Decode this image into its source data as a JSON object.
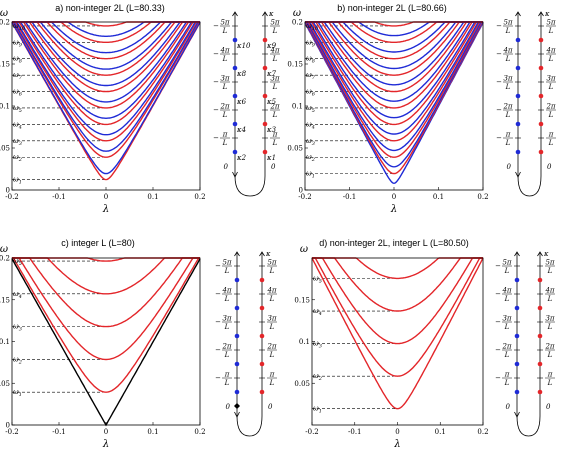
{
  "chart_data": [
    {
      "type": "line",
      "title": "a) non-integer 2L (L=80.33)",
      "xlabel": "λ",
      "ylabel": "ω",
      "xlim": [
        -0.2,
        0.2
      ],
      "ylim": [
        0,
        0.2
      ],
      "xticks": [
        "-0.2",
        "-0.1",
        "0",
        "0.1",
        "0.2"
      ],
      "yticks": [
        {
          "v": 0,
          "t": "0"
        },
        {
          "v": 0.05,
          "t": "0.05"
        },
        {
          "v": 0.1,
          "t": "0.1"
        },
        {
          "v": 0.15,
          "t": "0.15"
        },
        {
          "v": 0.2,
          "t": "0.2"
        }
      ],
      "omega_labels": [
        "ω1",
        "ω2",
        "ω3",
        "ω4",
        "ω5",
        "ω6",
        "ω7",
        "ω8",
        "ω9",
        "ω10"
      ],
      "series": [
        {
          "color": "#e3262a",
          "min": [
            0.0,
            0.0124
          ]
        },
        {
          "color": "#1f2bd6",
          "min": [
            0.0,
            0.0195
          ]
        },
        {
          "color": "#e3262a",
          "min": [
            0.0,
            0.039
          ]
        },
        {
          "color": "#1f2bd6",
          "min": [
            0.0,
            0.0462
          ]
        },
        {
          "color": "#e3262a",
          "min": [
            0.0,
            0.0586
          ]
        },
        {
          "color": "#1f2bd6",
          "min": [
            0.0,
            0.0658
          ]
        },
        {
          "color": "#e3262a",
          "min": [
            0.0,
            0.0781
          ]
        },
        {
          "color": "#1f2bd6",
          "min": [
            0.0,
            0.0854
          ]
        },
        {
          "color": "#e3262a",
          "min": [
            0.0,
            0.0977
          ]
        },
        {
          "color": "#1f2bd6",
          "min": [
            0.0,
            0.1049
          ]
        },
        {
          "color": "#e3262a",
          "min": [
            0.0,
            0.1172
          ]
        },
        {
          "color": "#1f2bd6",
          "min": [
            0.0,
            0.1244
          ]
        },
        {
          "color": "#e3262a",
          "min": [
            0.0,
            0.1367
          ]
        },
        {
          "color": "#1f2bd6",
          "min": [
            0.0,
            0.1439
          ]
        },
        {
          "color": "#e3262a",
          "min": [
            0.0,
            0.1563
          ]
        },
        {
          "color": "#1f2bd6",
          "min": [
            0.0,
            0.1635
          ]
        },
        {
          "color": "#e3262a",
          "min": [
            0.0,
            0.1758
          ]
        },
        {
          "color": "#1f2bd6",
          "min": [
            0.0,
            0.183
          ]
        },
        {
          "color": "#e3262a",
          "min": [
            0.0,
            0.1953
          ]
        }
      ],
      "dashed_levels": [
        0.0124,
        0.039,
        0.0586,
        0.0781,
        0.0977,
        0.1172,
        0.1367,
        0.1563,
        0.1758,
        0.1953
      ]
    },
    {
      "type": "line",
      "title": "b) non-integer 2L (L=80.66)",
      "xlabel": "λ",
      "ylabel": "ω",
      "xlim": [
        -0.2,
        0.2
      ],
      "ylim": [
        0,
        0.2
      ],
      "xticks": [
        "-0.2",
        "-0.1",
        "0",
        "0.1",
        "0.2"
      ],
      "yticks": [
        {
          "v": 0,
          "t": "0"
        },
        {
          "v": 0.05,
          "t": "0.05"
        },
        {
          "v": 0.1,
          "t": "0.1"
        },
        {
          "v": 0.15,
          "t": "0.15"
        },
        {
          "v": 0.2,
          "t": "0.2"
        }
      ],
      "omega_labels": [
        "ω1",
        "ω2",
        "ω3",
        "ω4",
        "ω5",
        "ω6",
        "ω7",
        "ω8",
        "ω9",
        "ω10"
      ],
      "series": [
        {
          "color": "#1f2bd6",
          "min": [
            0.0,
            0.008
          ]
        },
        {
          "color": "#e3262a",
          "min": [
            0.0,
            0.0195
          ]
        },
        {
          "color": "#1f2bd6",
          "min": [
            0.0,
            0.0276
          ]
        },
        {
          "color": "#e3262a",
          "min": [
            0.0,
            0.039
          ]
        },
        {
          "color": "#1f2bd6",
          "min": [
            0.0,
            0.0471
          ]
        },
        {
          "color": "#e3262a",
          "min": [
            0.0,
            0.0586
          ]
        },
        {
          "color": "#1f2bd6",
          "min": [
            0.0,
            0.0666
          ]
        },
        {
          "color": "#e3262a",
          "min": [
            0.0,
            0.0781
          ]
        },
        {
          "color": "#1f2bd6",
          "min": [
            0.0,
            0.0861
          ]
        },
        {
          "color": "#e3262a",
          "min": [
            0.0,
            0.0977
          ]
        },
        {
          "color": "#1f2bd6",
          "min": [
            0.0,
            0.1057
          ]
        },
        {
          "color": "#e3262a",
          "min": [
            0.0,
            0.1172
          ]
        },
        {
          "color": "#1f2bd6",
          "min": [
            0.0,
            0.1252
          ]
        },
        {
          "color": "#e3262a",
          "min": [
            0.0,
            0.1367
          ]
        },
        {
          "color": "#1f2bd6",
          "min": [
            0.0,
            0.1447
          ]
        },
        {
          "color": "#e3262a",
          "min": [
            0.0,
            0.1563
          ]
        },
        {
          "color": "#1f2bd6",
          "min": [
            0.0,
            0.1643
          ]
        },
        {
          "color": "#e3262a",
          "min": [
            0.0,
            0.1758
          ]
        },
        {
          "color": "#1f2bd6",
          "min": [
            0.0,
            0.1838
          ]
        },
        {
          "color": "#e3262a",
          "min": [
            0.0,
            0.1953
          ]
        }
      ],
      "dashed_levels": [
        0.0195,
        0.039,
        0.0586,
        0.0781,
        0.0977,
        0.1172,
        0.1367,
        0.1563,
        0.1758,
        0.1953
      ]
    },
    {
      "type": "line",
      "title": "c) integer L (L=80)",
      "xlabel": "λ",
      "ylabel": "ω",
      "xlim": [
        -0.2,
        0.2
      ],
      "ylim": [
        0,
        0.2
      ],
      "xticks": [
        "-0.2",
        "-0.1",
        "0",
        "0.1",
        "0.2"
      ],
      "yticks": [
        {
          "v": 0,
          "t": "0"
        },
        {
          "v": 0.05,
          "t": "0.05"
        },
        {
          "v": 0.1,
          "t": "0.1"
        },
        {
          "v": 0.15,
          "t": "0.15"
        },
        {
          "v": 0.2,
          "t": "0.2"
        }
      ],
      "omega_labels": [
        "ω1",
        "ω2",
        "ω3",
        "ω4",
        "ω5"
      ],
      "series": [
        {
          "color": "#000000",
          "min": [
            0.0,
            0.0
          ]
        },
        {
          "color": "#e3262a",
          "min": [
            0.0,
            0.0393
          ]
        },
        {
          "color": "#e3262a",
          "min": [
            0.0,
            0.0785
          ]
        },
        {
          "color": "#e3262a",
          "min": [
            0.0,
            0.1178
          ]
        },
        {
          "color": "#e3262a",
          "min": [
            0.0,
            0.1571
          ]
        },
        {
          "color": "#e3262a",
          "min": [
            0.0,
            0.1963
          ]
        }
      ],
      "dashed_levels": [
        0.0393,
        0.0785,
        0.1178,
        0.1571,
        0.1963
      ]
    },
    {
      "type": "line",
      "title": "d) non-integer 2L, integer L (L=80.50)",
      "xlabel": "λ",
      "ylabel": "ω",
      "xlim": [
        -0.2,
        0.2
      ],
      "ylim": [
        0,
        0.2
      ],
      "xticks": [
        "-0.2",
        "-0.1",
        "0",
        "0.1",
        "0.2"
      ],
      "yticks": [
        {
          "v": 0.05,
          "t": "0.05"
        },
        {
          "v": 0.1,
          "t": "0.1"
        },
        {
          "v": 0.15,
          "t": "0.15"
        }
      ],
      "omega_labels": [
        "ω1",
        "ω2",
        "ω3",
        "ω4",
        "ω5"
      ],
      "series": [
        {
          "color": "#e3262a",
          "min": [
            0.0,
            0.0195
          ]
        },
        {
          "color": "#e3262a",
          "min": [
            0.0,
            0.0585
          ]
        },
        {
          "color": "#e3262a",
          "min": [
            0.0,
            0.0975
          ]
        },
        {
          "color": "#e3262a",
          "min": [
            0.0,
            0.1365
          ]
        },
        {
          "color": "#e3262a",
          "min": [
            0.0,
            0.1756
          ]
        }
      ],
      "dashed_levels": [
        0.0195,
        0.0585,
        0.0975,
        0.1365,
        0.1756
      ]
    }
  ],
  "kappa_panels": [
    {
      "left_dots": [
        "#1f2bd6",
        "#1f2bd6",
        "#1f2bd6",
        "#1f2bd6",
        "#1f2bd6"
      ],
      "right_dots": [
        "#e3262a",
        "#e3262a",
        "#e3262a",
        "#e3262a",
        "#e3262a"
      ],
      "kappa_left": [
        "κ2",
        "κ4",
        "κ6",
        "κ8",
        "κ10"
      ],
      "kappa_right": [
        "κ1",
        "κ3",
        "κ5",
        "κ7",
        "κ9"
      ],
      "axis_label": "κ",
      "zero": "0",
      "multiples": [
        "π",
        "2π",
        "3π",
        "4π",
        "5π"
      ],
      "denominator": "L",
      "origin_dot": false
    },
    {
      "left_dots": [
        "#1f2bd6",
        "#1f2bd6",
        "#1f2bd6",
        "#1f2bd6",
        "#1f2bd6"
      ],
      "right_dots": [
        "#e3262a",
        "#e3262a",
        "#e3262a",
        "#e3262a",
        "#e3262a"
      ],
      "kappa_left": [],
      "kappa_right": [],
      "axis_label": "κ",
      "zero": "0",
      "multiples": [
        "π",
        "2π",
        "3π",
        "4π",
        "5π"
      ],
      "denominator": "L",
      "origin_dot": false
    },
    {
      "left_dots": [
        "#1f2bd6",
        "#1f2bd6",
        "#1f2bd6",
        "#1f2bd6",
        "#1f2bd6"
      ],
      "right_dots": [
        "#e3262a",
        "#e3262a",
        "#e3262a",
        "#e3262a",
        "#e3262a"
      ],
      "kappa_left": [],
      "kappa_right": [],
      "axis_label": "κ",
      "zero": "0",
      "multiples": [
        "π",
        "2π",
        "3π",
        "4π",
        "5π"
      ],
      "denominator": "L",
      "origin_dot": true
    },
    {
      "left_dots": [
        "#1f2bd6",
        "#1f2bd6",
        "#1f2bd6",
        "#1f2bd6",
        "#1f2bd6"
      ],
      "right_dots": [
        "#e3262a",
        "#e3262a",
        "#e3262a",
        "#e3262a",
        "#e3262a"
      ],
      "kappa_left": [],
      "kappa_right": [],
      "axis_label": "κ",
      "zero": "0",
      "multiples": [
        "π",
        "2π",
        "3π",
        "4π",
        "5π"
      ],
      "denominator": "L",
      "origin_dot": false
    }
  ]
}
